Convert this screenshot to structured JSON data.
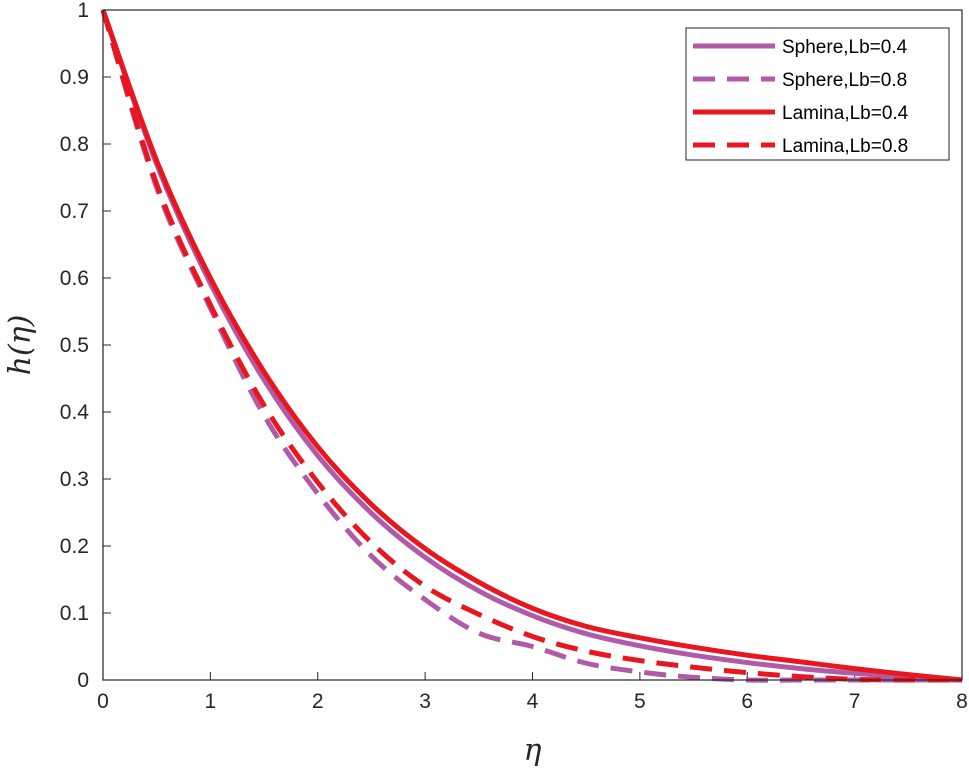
{
  "chart_data": {
    "type": "line",
    "xlabel": "η",
    "ylabel": "h(η)",
    "xlim": [
      0,
      8
    ],
    "ylim": [
      0,
      1
    ],
    "xticks": [
      "0",
      "1",
      "2",
      "3",
      "4",
      "5",
      "6",
      "7",
      "8"
    ],
    "yticks": [
      "0",
      "0.1",
      "0.2",
      "0.3",
      "0.4",
      "0.5",
      "0.6",
      "0.7",
      "0.8",
      "0.9",
      "1"
    ],
    "grid": false,
    "legend_position": "top-right",
    "series": [
      {
        "name": "Sphere,Lb=0.4",
        "color": "#b05aa8",
        "dash": "solid",
        "x": [
          0,
          0.5,
          1,
          1.5,
          2,
          2.5,
          3,
          3.5,
          4,
          4.5,
          5,
          5.5,
          6,
          6.5,
          7,
          7.5,
          8
        ],
        "y": [
          1.0,
          0.77,
          0.592,
          0.448,
          0.335,
          0.249,
          0.183,
          0.133,
          0.096,
          0.069,
          0.051,
          0.037,
          0.026,
          0.017,
          0.01,
          0.004,
          0.0
        ]
      },
      {
        "name": "Sphere,Lb=0.8",
        "color": "#b05aa8",
        "dash": "dashed",
        "x": [
          0,
          0.5,
          1,
          1.5,
          2,
          2.5,
          3,
          3.5,
          4,
          4.5,
          5,
          5.5,
          6,
          6.5,
          7,
          7.5,
          8
        ],
        "y": [
          1.0,
          0.735,
          0.555,
          0.395,
          0.278,
          0.185,
          0.12,
          0.07,
          0.05,
          0.025,
          0.012,
          0.004,
          0.0,
          -0.003,
          -0.002,
          -0.001,
          0.0
        ]
      },
      {
        "name": "Lamina,Lb=0.4",
        "color": "#e8171f",
        "dash": "solid",
        "x": [
          0,
          0.5,
          1,
          1.5,
          2,
          2.5,
          3,
          3.5,
          4,
          4.5,
          5,
          5.5,
          6,
          6.5,
          7,
          7.5,
          8
        ],
        "y": [
          1.0,
          0.775,
          0.6,
          0.46,
          0.348,
          0.262,
          0.196,
          0.146,
          0.107,
          0.08,
          0.063,
          0.049,
          0.037,
          0.027,
          0.017,
          0.008,
          0.0
        ]
      },
      {
        "name": "Lamina,Lb=0.8",
        "color": "#e8171f",
        "dash": "dashed",
        "x": [
          0,
          0.5,
          1,
          1.5,
          2,
          2.5,
          3,
          3.5,
          4,
          4.5,
          5,
          5.5,
          6,
          6.5,
          7,
          7.5,
          8
        ],
        "y": [
          1.0,
          0.74,
          0.56,
          0.41,
          0.295,
          0.205,
          0.14,
          0.098,
          0.065,
          0.043,
          0.029,
          0.019,
          0.011,
          0.005,
          0.001,
          -0.001,
          0.0
        ]
      }
    ]
  }
}
